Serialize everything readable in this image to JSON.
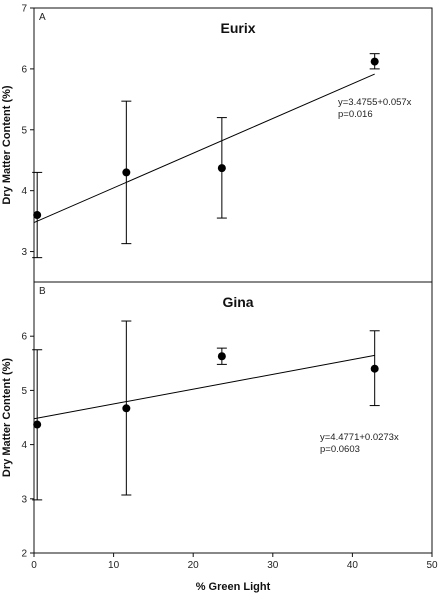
{
  "figure": {
    "xlabel": "% Green Light"
  },
  "chart_data": [
    {
      "type": "scatter",
      "panel_letter": "A",
      "title": "Eurix",
      "ylabel": "Dry Matter Content (%)",
      "xlabel": "",
      "xlim": [
        0,
        50
      ],
      "ylim": [
        2.5,
        7
      ],
      "x_ticks": [],
      "y_ticks": [
        3,
        4,
        5,
        6,
        7
      ],
      "points": [
        {
          "x": 0.4,
          "y": 3.6,
          "err_low": 2.9,
          "err_high": 4.3
        },
        {
          "x": 11.6,
          "y": 4.3,
          "err_low": 3.13,
          "err_high": 5.47
        },
        {
          "x": 23.6,
          "y": 4.37,
          "err_low": 3.55,
          "err_high": 5.2
        },
        {
          "x": 42.8,
          "y": 6.12,
          "err_low": 6.0,
          "err_high": 6.25
        }
      ],
      "fit": {
        "intercept": 3.4755,
        "slope": 0.057,
        "x_range": [
          0,
          42.8
        ]
      },
      "annotation": [
        "y=3.4755+0.057x",
        "p=0.016"
      ],
      "grid": false,
      "color": "#000000"
    },
    {
      "type": "scatter",
      "panel_letter": "B",
      "title": "Gina",
      "ylabel": "Dry Matter Content (%)",
      "xlabel": "% Green Light",
      "xlim": [
        0,
        50
      ],
      "ylim": [
        2,
        7
      ],
      "x_ticks": [
        0,
        10,
        20,
        30,
        40,
        50
      ],
      "y_ticks": [
        2,
        3,
        4,
        5,
        6
      ],
      "points": [
        {
          "x": 0.4,
          "y": 4.37,
          "err_low": 2.98,
          "err_high": 5.75
        },
        {
          "x": 11.6,
          "y": 4.67,
          "err_low": 3.07,
          "err_high": 6.28
        },
        {
          "x": 23.6,
          "y": 5.63,
          "err_low": 5.48,
          "err_high": 5.78
        },
        {
          "x": 42.8,
          "y": 5.4,
          "err_low": 4.72,
          "err_high": 6.1
        }
      ],
      "fit": {
        "intercept": 4.4771,
        "slope": 0.0273,
        "x_range": [
          0,
          42.8
        ]
      },
      "annotation": [
        "y=4.4771+0.0273x",
        "p=0.0603"
      ],
      "grid": false,
      "color": "#000000"
    }
  ]
}
